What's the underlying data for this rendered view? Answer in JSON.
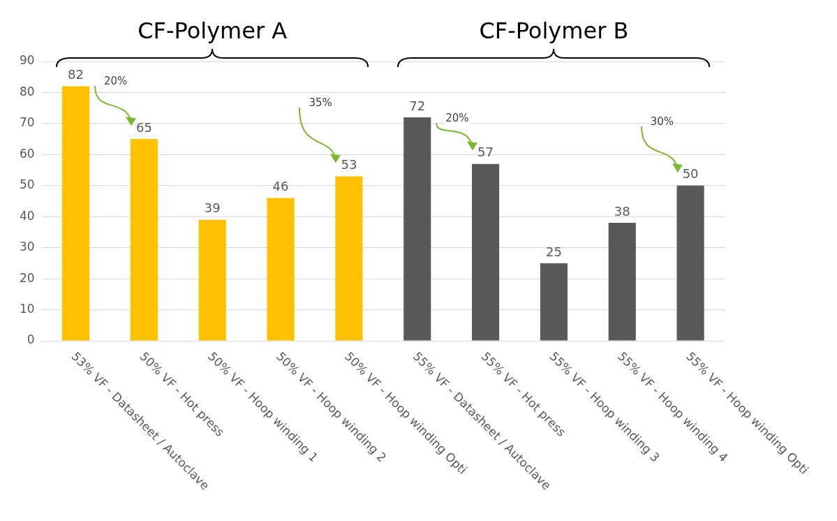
{
  "chart_data": {
    "type": "bar",
    "categories": [
      "53% VF - Datasheet / Autoclave",
      "50% VF - Hot press",
      "50% VF - Hoop winding 1",
      "50% VF - Hoop winding 2",
      "50% VF - Hoop winding Opti",
      "55% VF - Datasheet / Autoclave",
      "55% VF - Hot press",
      "55% VF - Hoop winding 3",
      "55% VF - Hoop winding 4",
      "55% VF - Hoop winding Opti"
    ],
    "values": [
      82,
      65,
      39,
      46,
      53,
      72,
      57,
      25,
      38,
      50
    ],
    "colors": [
      "#ffc000",
      "#ffc000",
      "#ffc000",
      "#ffc000",
      "#ffc000",
      "#595959",
      "#595959",
      "#595959",
      "#595959",
      "#595959"
    ],
    "ylim": [
      0,
      90
    ],
    "yticks": [
      0,
      10,
      20,
      30,
      40,
      50,
      60,
      70,
      80,
      90
    ],
    "grid": "y",
    "data_labels": true,
    "legend": false,
    "annotations": [
      "CF-Polymer A",
      "CF-Polymer B",
      "20%",
      "35%",
      "20%",
      "30%"
    ]
  }
}
